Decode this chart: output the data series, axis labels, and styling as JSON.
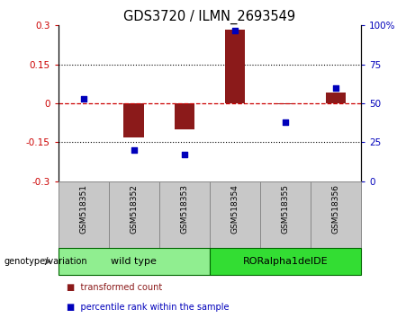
{
  "title": "GDS3720 / ILMN_2693549",
  "samples": [
    "GSM518351",
    "GSM518352",
    "GSM518353",
    "GSM518354",
    "GSM518355",
    "GSM518356"
  ],
  "bar_values": [
    0.0,
    -0.13,
    -0.1,
    0.285,
    -0.005,
    0.04
  ],
  "dot_values_pct": [
    53,
    20,
    17,
    97,
    38,
    60
  ],
  "ylim_left": [
    -0.3,
    0.3
  ],
  "ylim_right": [
    0,
    100
  ],
  "yticks_left": [
    -0.3,
    -0.15,
    0,
    0.15,
    0.3
  ],
  "yticks_right": [
    0,
    25,
    50,
    75,
    100
  ],
  "ytick_labels_left": [
    "-0.3",
    "-0.15",
    "0",
    "0.15",
    "0.3"
  ],
  "ytick_labels_right": [
    "0",
    "25",
    "50",
    "75",
    "100%"
  ],
  "dotted_lines": [
    -0.15,
    0.15
  ],
  "bar_color": "#8B1A1A",
  "dot_color": "#0000BB",
  "hline_color": "#CC0000",
  "genotype_label": "genotype/variation",
  "groups": [
    {
      "label": "wild type",
      "color": "#90EE90",
      "border": "#006600"
    },
    {
      "label": "RORalpha1delDE",
      "color": "#33DD33",
      "border": "#006600"
    }
  ],
  "legend_items": [
    {
      "label": "transformed count",
      "color": "#8B1A1A"
    },
    {
      "label": "percentile rank within the sample",
      "color": "#0000BB"
    }
  ],
  "sample_box_color": "#C8C8C8",
  "sample_box_border": "#888888",
  "bg_color": "#FFFFFF"
}
